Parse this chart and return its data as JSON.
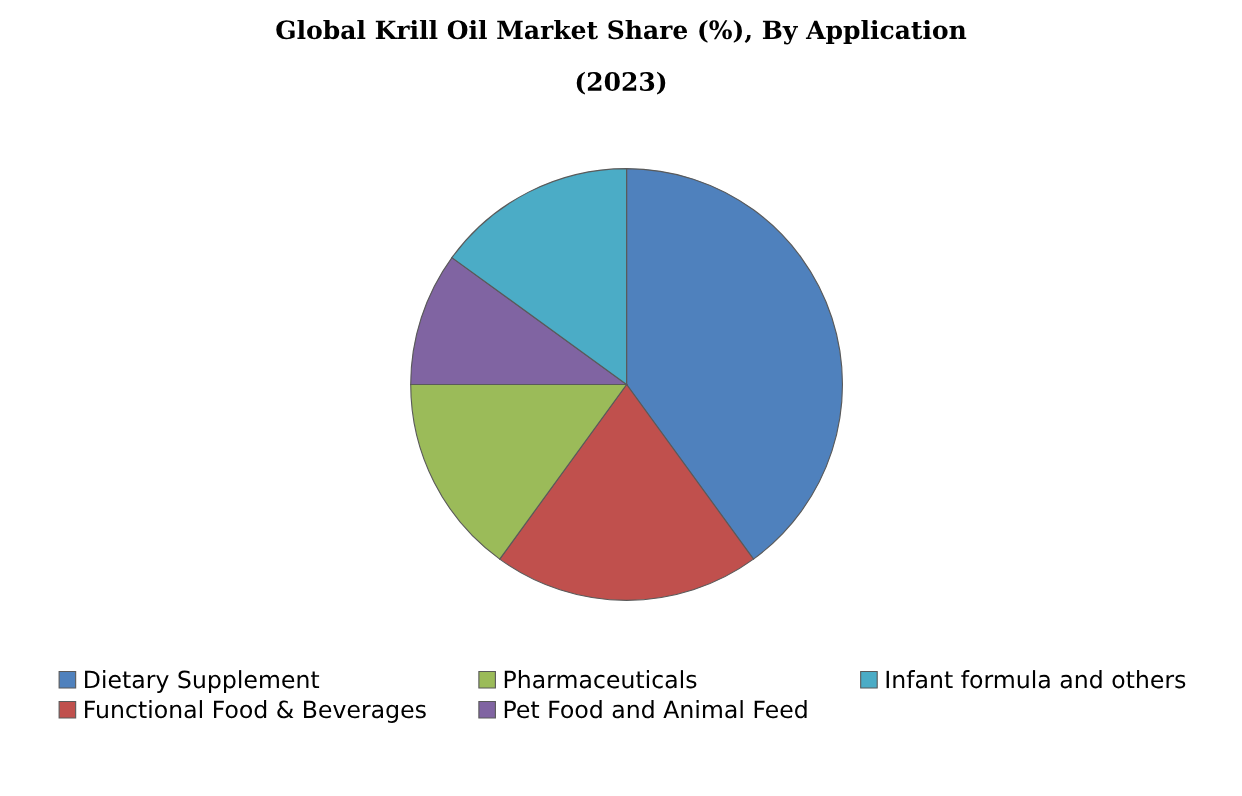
{
  "chart_data": {
    "type": "pie",
    "title": "Global Krill Oil Market Share (%), By Application",
    "subtitle": "(2023)",
    "categories": [
      "Dietary Supplement",
      "Functional Food & Beverages",
      "Pharmaceuticals",
      "Pet Food and Animal Feed",
      "Infant formula and others"
    ],
    "values": [
      40,
      20,
      15,
      10,
      15
    ],
    "colors": [
      "#4f81bd",
      "#c0504d",
      "#9bbb59",
      "#8064a2",
      "#4bacc6"
    ],
    "legend": "bottom"
  }
}
